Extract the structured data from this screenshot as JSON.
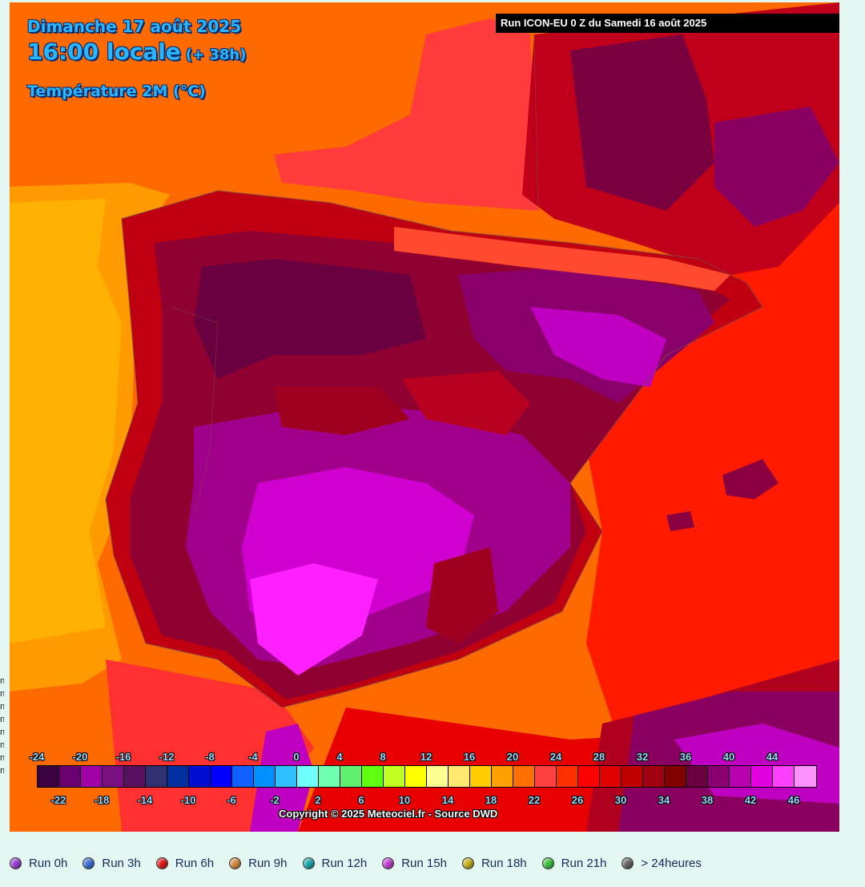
{
  "map": {
    "date_title": "Dimanche 17 août 2025",
    "time_title": "16:00 locale",
    "time_offset": "(+ 38h)",
    "variable_title": "Température 2M (°C)",
    "run_banner": "Run ICON-EU 0 Z du Samedi 16 août 2025",
    "copyright": "Copyright © 2025 Meteociel.fr - Source DWD"
  },
  "legend": {
    "top_labels": [
      "-24",
      "-20",
      "-16",
      "-12",
      "-8",
      "-4",
      "0",
      "4",
      "8",
      "12",
      "16",
      "20",
      "24",
      "28",
      "32",
      "36",
      "40",
      "44"
    ],
    "bottom_labels": [
      "-22",
      "-18",
      "-14",
      "-10",
      "-6",
      "-2",
      "2",
      "6",
      "10",
      "14",
      "18",
      "22",
      "26",
      "30",
      "34",
      "38",
      "42",
      "46"
    ],
    "colors": [
      "#3a0040",
      "#6a0070",
      "#a000a8",
      "#7a1080",
      "#5a1060",
      "#303070",
      "#0030a0",
      "#0010d0",
      "#0000ff",
      "#1060ff",
      "#0090ff",
      "#30c0ff",
      "#70ffff",
      "#70ffb0",
      "#60f070",
      "#60ff10",
      "#c0ff20",
      "#ffff00",
      "#ffff90",
      "#ffe870",
      "#ffcc00",
      "#ffa000",
      "#ff7000",
      "#ff4040",
      "#ff3000",
      "#ff0000",
      "#e00000",
      "#c00000",
      "#a00010",
      "#800000",
      "#6a0040",
      "#8a0070",
      "#b800b0",
      "#e000e0",
      "#ff40ff",
      "#ff90ff"
    ]
  },
  "edge_marks": [
    "n",
    "n",
    "n",
    "n",
    "n",
    "n",
    "n",
    "n"
  ],
  "run_bar": [
    {
      "label": "Run 0h",
      "color": "#9b3fd6"
    },
    {
      "label": "Run 3h",
      "color": "#3f6fd6"
    },
    {
      "label": "Run 6h",
      "color": "#e01818"
    },
    {
      "label": "Run 9h",
      "color": "#d68a3f"
    },
    {
      "label": "Run 12h",
      "color": "#1aa8a8"
    },
    {
      "label": "Run 15h",
      "color": "#c43fd6"
    },
    {
      "label": "Run 18h",
      "color": "#c8b01a"
    },
    {
      "label": "Run 21h",
      "color": "#3fc43f"
    },
    {
      "label": "> 24heures",
      "color": "#666666"
    }
  ]
}
